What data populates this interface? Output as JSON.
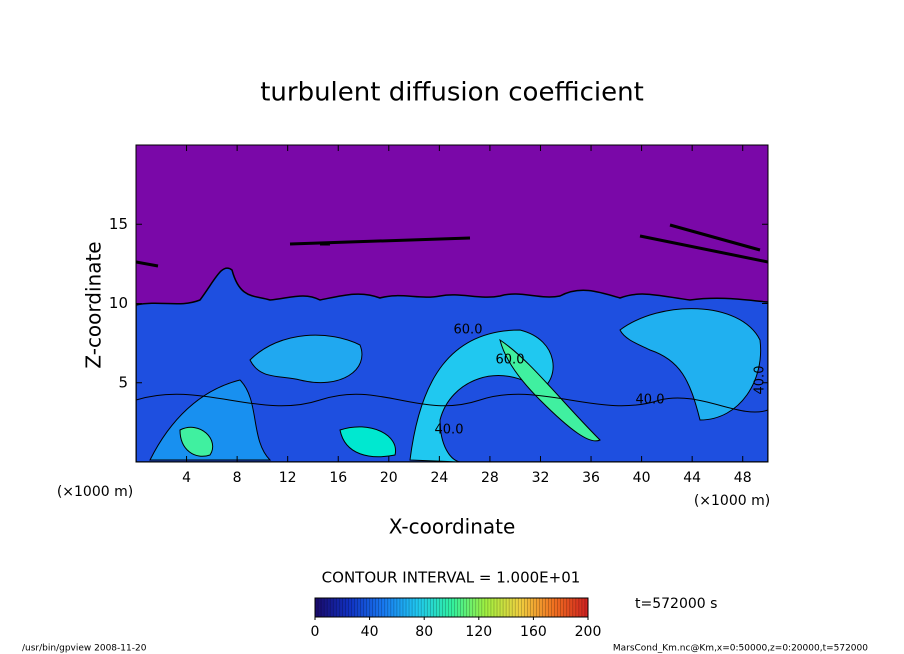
{
  "chart_data": {
    "type": "contour",
    "title": "turbulent diffusion coefficient",
    "x_label": "X-coordinate",
    "y_label": "Z-coordinate",
    "x_unit": "(×1000 m)",
    "xlim": [
      0,
      50
    ],
    "xticks": [
      4,
      8,
      12,
      16,
      20,
      24,
      28,
      32,
      36,
      40,
      44,
      48
    ],
    "ylim": [
      0,
      20
    ],
    "yticks": [
      5,
      10,
      15
    ],
    "contour_interval": "CONTOUR INTERVAL = 1.000E+01",
    "contour_labels": [
      "60.0",
      "40.0",
      "60.0",
      "40.0",
      "40.0"
    ],
    "time_label": "t=572000 s",
    "clim": [
      0,
      200
    ],
    "cticks": [
      0,
      40,
      80,
      120,
      160,
      200
    ],
    "colormap": [
      "#1a0a6a",
      "#1030c0",
      "#1878f0",
      "#20c8f0",
      "#30f0a0",
      "#a0f040",
      "#f0d040",
      "#f07020",
      "#d02020"
    ],
    "footer_left": "/usr/bin/gpview   2008-11-20",
    "footer_right": "MarsCond_Km.nc@Km,x=0:50000,z=0:20000,t=572000"
  }
}
